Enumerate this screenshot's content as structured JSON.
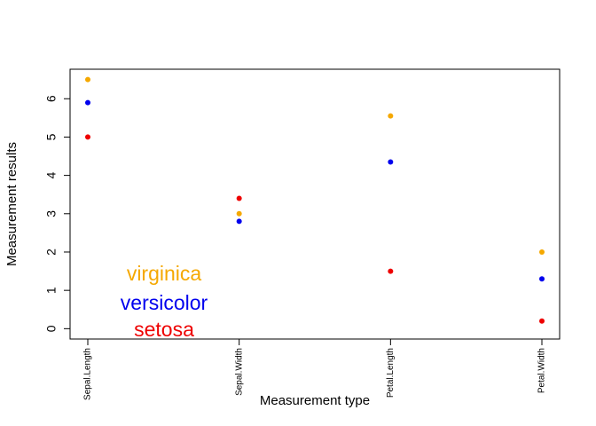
{
  "chart_data": {
    "type": "scatter",
    "xlabel": "Measurement type",
    "ylabel": "Measurement results",
    "categories": [
      "Sepal.Length",
      "Sepal.Width",
      "Petal.Length",
      "Petal.Width"
    ],
    "yticks": [
      0,
      1,
      2,
      3,
      4,
      5,
      6
    ],
    "ylim": [
      -0.27,
      6.77
    ],
    "grid": false,
    "series": [
      {
        "name": "setosa",
        "color": "#ee0000",
        "values": [
          5.0,
          3.4,
          1.5,
          0.2
        ]
      },
      {
        "name": "versicolor",
        "color": "#0000ee",
        "values": [
          5.9,
          2.8,
          4.35,
          1.3
        ]
      },
      {
        "name": "virginica",
        "color": "#f5a800",
        "values": [
          6.5,
          3.0,
          5.55,
          2.0
        ]
      }
    ]
  }
}
